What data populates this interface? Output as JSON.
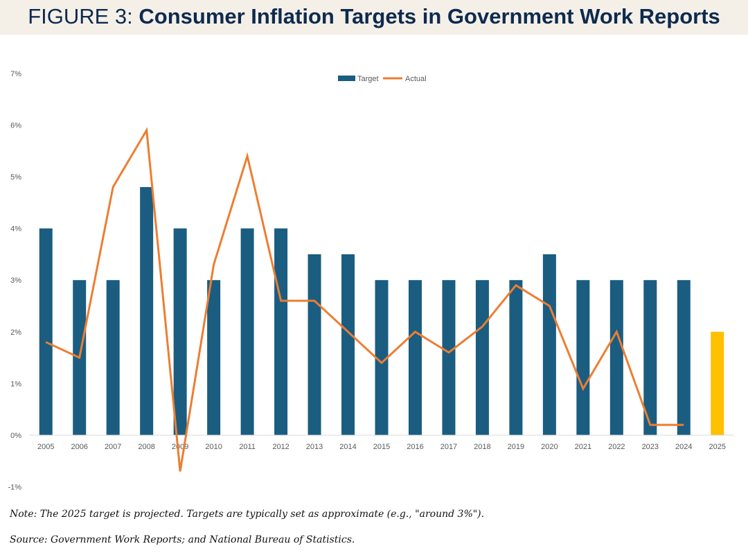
{
  "header": {
    "title_prefix": "FIGURE 3: ",
    "title_main": "Consumer Inflation Targets in Government Work Reports"
  },
  "chart_data": {
    "type": "bar",
    "categories": [
      "2005",
      "2006",
      "2007",
      "2008",
      "2009",
      "2010",
      "2011",
      "2012",
      "2013",
      "2014",
      "2015",
      "2016",
      "2017",
      "2018",
      "2019",
      "2020",
      "2021",
      "2022",
      "2023",
      "2024",
      "2025"
    ],
    "series": [
      {
        "name": "Target",
        "kind": "bar",
        "values": [
          4,
          3,
          3,
          4.8,
          4,
          3,
          4,
          4,
          3.5,
          3.5,
          3,
          3,
          3,
          3,
          3,
          3.5,
          3,
          3,
          3,
          3,
          2
        ]
      },
      {
        "name": "Actual",
        "kind": "line",
        "values": [
          1.8,
          1.5,
          4.8,
          5.9,
          -0.7,
          3.3,
          5.4,
          2.6,
          2.6,
          2.0,
          1.4,
          2.0,
          1.6,
          2.1,
          2.9,
          2.5,
          0.9,
          2.0,
          0.2,
          0.2,
          null
        ]
      }
    ],
    "ylim": [
      -1,
      7
    ],
    "yticks": [
      -1,
      0,
      1,
      2,
      3,
      4,
      5,
      6,
      7
    ],
    "ytick_labels": [
      "-1%",
      "0%",
      "1%",
      "2%",
      "3%",
      "4%",
      "5%",
      "6%",
      "7%"
    ],
    "legend": [
      "Target",
      "Actual"
    ],
    "legend_position": "top-center",
    "projected_category": "2025",
    "colors": {
      "target": "#1a5d80",
      "projected": "#ffc000",
      "actual": "#ed7d31",
      "axis": "#d9d9d9",
      "tick_text": "#595959"
    }
  },
  "notes": {
    "note": "Note: The 2025 target is projected. Targets are typically set as approximate (e.g., \"around 3%\").",
    "source": "Source: Government Work Reports; and National Bureau of Statistics."
  }
}
